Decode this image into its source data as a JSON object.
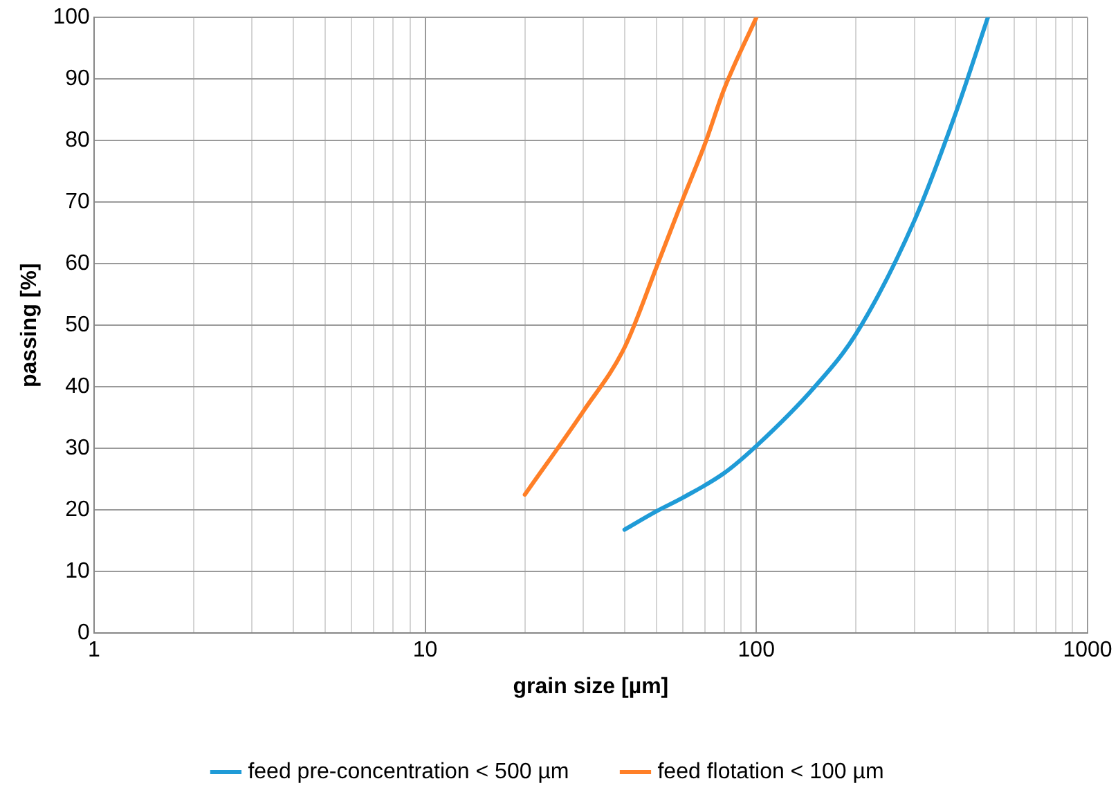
{
  "chart_data": {
    "type": "line",
    "xlabel": "grain size [µm]",
    "ylabel": "passing [%]",
    "log": "x",
    "grid": true,
    "legend": "bottom",
    "marker": "none",
    "line_style": "solid",
    "xlim": [
      1,
      1000
    ],
    "ylim": [
      0,
      100
    ],
    "xticks": [
      1,
      {
        "value": 2,
        "label": null
      },
      {
        "value": 3,
        "label": null
      },
      {
        "value": 4,
        "label": null
      },
      {
        "value": 5,
        "label": null
      },
      {
        "value": 6,
        "label": null
      },
      {
        "value": 7,
        "label": null
      },
      {
        "value": 8,
        "label": null
      },
      {
        "value": 9,
        "label": null
      },
      10,
      {
        "value": 20,
        "label": null
      },
      {
        "value": 30,
        "label": null
      },
      {
        "value": 40,
        "label": null
      },
      {
        "value": 50,
        "label": null
      },
      {
        "value": 60,
        "label": null
      },
      {
        "value": 70,
        "label": null
      },
      {
        "value": 80,
        "label": null
      },
      {
        "value": 90,
        "label": null
      },
      100,
      {
        "value": 200,
        "label": null
      },
      {
        "value": 300,
        "label": null
      },
      {
        "value": 400,
        "label": null
      },
      {
        "value": 500,
        "label": null
      },
      {
        "value": 600,
        "label": null
      },
      {
        "value": 700,
        "label": null
      },
      {
        "value": 800,
        "label": null
      },
      {
        "value": 900,
        "label": null
      },
      1000
    ],
    "yticks": [
      0,
      10,
      20,
      30,
      40,
      50,
      60,
      70,
      80,
      90,
      100
    ],
    "series": [
      {
        "name": "feed pre-concentration < 500 µm",
        "color": "#1f9bd7",
        "x": [
          40,
          50,
          60,
          80,
          100,
          150,
          200,
          300,
          400,
          500
        ],
        "values": [
          16.8,
          19.8,
          22,
          26,
          30.4,
          40,
          48.6,
          67,
          84.5,
          100
        ]
      },
      {
        "name": "feed flotation < 100 µm",
        "color": "#ff7f27",
        "x": [
          20,
          30,
          40,
          50,
          60,
          70,
          80,
          100
        ],
        "values": [
          22.5,
          36,
          46.4,
          59.5,
          70.5,
          79.5,
          88.4,
          100
        ]
      }
    ]
  }
}
